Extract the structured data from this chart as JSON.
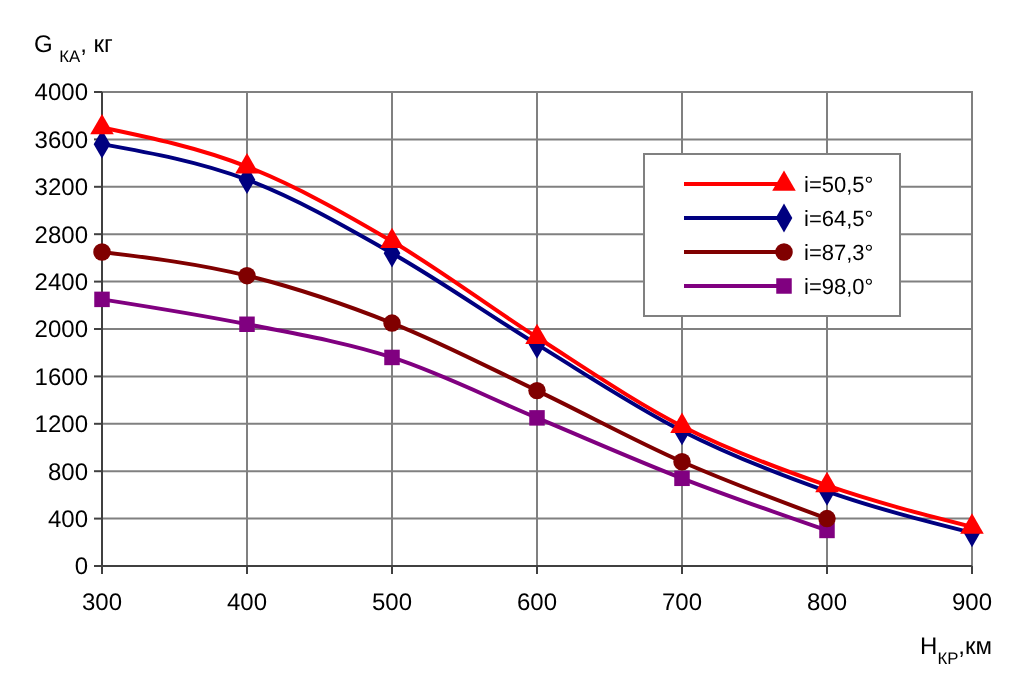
{
  "chart_data": {
    "type": "line",
    "xlabel": "H$_{КР}$,км",
    "ylabel": "G $_{КА}$, кг",
    "x": [
      300,
      400,
      500,
      600,
      700,
      800,
      900
    ],
    "xlim": [
      300,
      900
    ],
    "xticks": [
      300,
      400,
      500,
      600,
      700,
      800,
      900
    ],
    "ylim": [
      0,
      4000
    ],
    "yticks": [
      0,
      400,
      800,
      1200,
      1600,
      2000,
      2400,
      2800,
      3200,
      3600,
      4000
    ],
    "grid": true,
    "legend": "right",
    "series": [
      {
        "name": "i=50,5°",
        "color": "#ff0000",
        "marker": "triangle",
        "values": [
          3700,
          3370,
          2740,
          1930,
          1180,
          680,
          330
        ]
      },
      {
        "name": "i=64,5°",
        "color": "#000080",
        "marker": "diamond",
        "values": [
          3560,
          3260,
          2640,
          1870,
          1140,
          630,
          280
        ]
      },
      {
        "name": "i=87,3°",
        "color": "#800000",
        "marker": "circle",
        "values": [
          2650,
          2450,
          2050,
          1480,
          880,
          400,
          null
        ]
      },
      {
        "name": "i=98,0°",
        "color": "#800080",
        "marker": "square",
        "values": [
          2250,
          2040,
          1760,
          1250,
          740,
          300,
          null
        ]
      }
    ]
  }
}
